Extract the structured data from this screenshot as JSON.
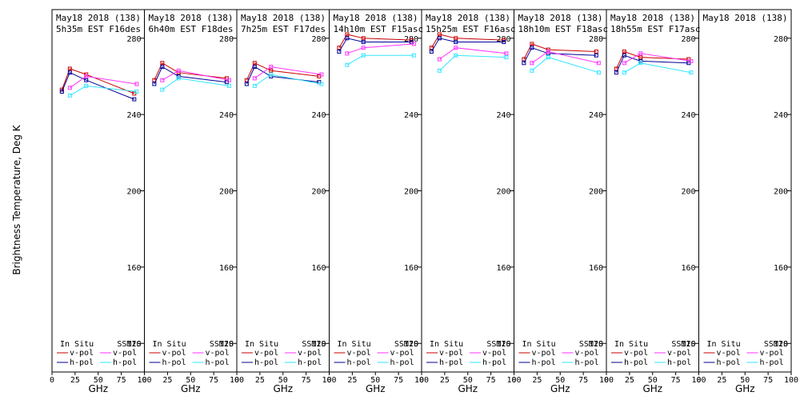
{
  "figure": {
    "ylabel": "Brightness Temperature, Deg K",
    "xlabel": "GHz"
  },
  "legend": {
    "insitu_header": "In Situ",
    "ssmis_header": "SSMIS",
    "vpol": "v-pol",
    "hpol": "h-pol"
  },
  "colors": {
    "insitu_v": "#c80000",
    "insitu_h": "#000096",
    "ssmis_v": "#ff32ff",
    "ssmis_h": "#32e6ff"
  },
  "chart_data": [
    {
      "type": "line",
      "title1": "May18 2018 (138)",
      "title2": "5h35m EST F16des",
      "xlim": [
        0,
        100
      ],
      "ylim": [
        105,
        295
      ],
      "xticks": [
        0,
        25,
        50,
        75,
        100
      ],
      "yticks": [
        120,
        160,
        200,
        240,
        280
      ],
      "series": [
        {
          "name": "In Situ v-pol",
          "x": [
            10.7,
            19.35,
            37,
            89
          ],
          "y": [
            253,
            264,
            261,
            251
          ]
        },
        {
          "name": "In Situ h-pol",
          "x": [
            10.7,
            19.35,
            37,
            89
          ],
          "y": [
            252,
            262,
            258,
            248
          ]
        },
        {
          "name": "SSMIS v-pol",
          "x": [
            19.35,
            37,
            91.66
          ],
          "y": [
            254,
            260,
            256
          ]
        },
        {
          "name": "SSMIS h-pol",
          "x": [
            19.35,
            37,
            91.66
          ],
          "y": [
            250,
            255,
            252
          ]
        }
      ]
    },
    {
      "type": "line",
      "title1": "May18 2018 (138)",
      "title2": "6h40m EST F18des",
      "xlim": [
        0,
        100
      ],
      "ylim": [
        105,
        295
      ],
      "xticks": [
        0,
        25,
        50,
        75,
        100
      ],
      "yticks": [
        120,
        160,
        200,
        240,
        280
      ],
      "series": [
        {
          "name": "In Situ v-pol",
          "x": [
            10.7,
            19.35,
            37,
            89
          ],
          "y": [
            258,
            267,
            262,
            259
          ]
        },
        {
          "name": "In Situ h-pol",
          "x": [
            10.7,
            19.35,
            37,
            89
          ],
          "y": [
            256,
            265,
            260,
            257
          ]
        },
        {
          "name": "SSMIS v-pol",
          "x": [
            19.35,
            37,
            91.66
          ],
          "y": [
            258,
            263,
            258
          ]
        },
        {
          "name": "SSMIS h-pol",
          "x": [
            19.35,
            37,
            91.66
          ],
          "y": [
            253,
            259,
            255
          ]
        }
      ]
    },
    {
      "type": "line",
      "title1": "May18 2018 (138)",
      "title2": "7h25m EST F17des",
      "xlim": [
        0,
        100
      ],
      "ylim": [
        105,
        295
      ],
      "xticks": [
        0,
        25,
        50,
        75,
        100
      ],
      "yticks": [
        120,
        160,
        200,
        240,
        280
      ],
      "series": [
        {
          "name": "In Situ v-pol",
          "x": [
            10.7,
            19.35,
            37,
            89
          ],
          "y": [
            258,
            267,
            263,
            260
          ]
        },
        {
          "name": "In Situ h-pol",
          "x": [
            10.7,
            19.35,
            37,
            89
          ],
          "y": [
            256,
            265,
            260,
            257
          ]
        },
        {
          "name": "SSMIS v-pol",
          "x": [
            19.35,
            37,
            91.66
          ],
          "y": [
            259,
            265,
            261
          ]
        },
        {
          "name": "SSMIS h-pol",
          "x": [
            19.35,
            37,
            91.66
          ],
          "y": [
            255,
            261,
            256
          ]
        }
      ]
    },
    {
      "type": "line",
      "title1": "May18 2018 (138)",
      "title2": "14h10m EST F15asc",
      "xlim": [
        0,
        100
      ],
      "ylim": [
        105,
        295
      ],
      "xticks": [
        0,
        25,
        50,
        75,
        100
      ],
      "yticks": [
        120,
        160,
        200,
        240,
        280
      ],
      "series": [
        {
          "name": "In Situ v-pol",
          "x": [
            10.7,
            19.35,
            37,
            89
          ],
          "y": [
            275,
            282,
            280,
            279
          ]
        },
        {
          "name": "In Situ h-pol",
          "x": [
            10.7,
            19.35,
            37,
            89
          ],
          "y": [
            273,
            280,
            278,
            278
          ]
        },
        {
          "name": "SSMIS v-pol",
          "x": [
            19.35,
            37,
            91.66
          ],
          "y": [
            272,
            275,
            277
          ]
        },
        {
          "name": "SSMIS h-pol",
          "x": [
            19.35,
            37,
            91.66
          ],
          "y": [
            266,
            271,
            271
          ]
        }
      ]
    },
    {
      "type": "line",
      "title1": "May18 2018 (138)",
      "title2": "15h25m EST F16asc",
      "xlim": [
        0,
        100
      ],
      "ylim": [
        105,
        295
      ],
      "xticks": [
        0,
        25,
        50,
        75,
        100
      ],
      "yticks": [
        120,
        160,
        200,
        240,
        280
      ],
      "series": [
        {
          "name": "In Situ v-pol",
          "x": [
            10.7,
            19.35,
            37,
            89
          ],
          "y": [
            275,
            282,
            280,
            279
          ]
        },
        {
          "name": "In Situ h-pol",
          "x": [
            10.7,
            19.35,
            37,
            89
          ],
          "y": [
            273,
            280,
            278,
            278
          ]
        },
        {
          "name": "SSMIS v-pol",
          "x": [
            19.35,
            37,
            91.66
          ],
          "y": [
            269,
            275,
            272
          ]
        },
        {
          "name": "SSMIS h-pol",
          "x": [
            19.35,
            37,
            91.66
          ],
          "y": [
            263,
            271,
            270
          ]
        }
      ]
    },
    {
      "type": "line",
      "title1": "May18 2018 (138)",
      "title2": "18h10m EST F18asc",
      "xlim": [
        0,
        100
      ],
      "ylim": [
        105,
        295
      ],
      "xticks": [
        0,
        25,
        50,
        75,
        100
      ],
      "yticks": [
        120,
        160,
        200,
        240,
        280
      ],
      "series": [
        {
          "name": "In Situ v-pol",
          "x": [
            10.7,
            19.35,
            37,
            89
          ],
          "y": [
            269,
            277,
            274,
            273
          ]
        },
        {
          "name": "In Situ h-pol",
          "x": [
            10.7,
            19.35,
            37,
            89
          ],
          "y": [
            267,
            275,
            272,
            271
          ]
        },
        {
          "name": "SSMIS v-pol",
          "x": [
            19.35,
            37,
            91.66
          ],
          "y": [
            267,
            273,
            267
          ]
        },
        {
          "name": "SSMIS h-pol",
          "x": [
            19.35,
            37,
            91.66
          ],
          "y": [
            263,
            270,
            262
          ]
        }
      ]
    },
    {
      "type": "line",
      "title1": "May18 2018 (138)",
      "title2": "18h55m EST F17asc",
      "xlim": [
        0,
        100
      ],
      "ylim": [
        105,
        295
      ],
      "xticks": [
        0,
        25,
        50,
        75,
        100
      ],
      "yticks": [
        120,
        160,
        200,
        240,
        280
      ],
      "series": [
        {
          "name": "In Situ v-pol",
          "x": [
            10.7,
            19.35,
            37,
            89
          ],
          "y": [
            264,
            273,
            270,
            269
          ]
        },
        {
          "name": "In Situ h-pol",
          "x": [
            10.7,
            19.35,
            37,
            89
          ],
          "y": [
            262,
            271,
            268,
            267
          ]
        },
        {
          "name": "SSMIS v-pol",
          "x": [
            19.35,
            37,
            91.66
          ],
          "y": [
            267,
            272,
            268
          ]
        },
        {
          "name": "SSMIS h-pol",
          "x": [
            19.35,
            37,
            91.66
          ],
          "y": [
            262,
            267,
            262
          ]
        }
      ]
    },
    {
      "type": "line",
      "title1": "May18 2018 (138)",
      "title2": "",
      "xlim": [
        0,
        100
      ],
      "ylim": [
        105,
        295
      ],
      "xticks": [
        0,
        25,
        50,
        75,
        100
      ],
      "yticks": [
        120,
        160,
        200,
        240,
        280
      ],
      "series": []
    }
  ]
}
